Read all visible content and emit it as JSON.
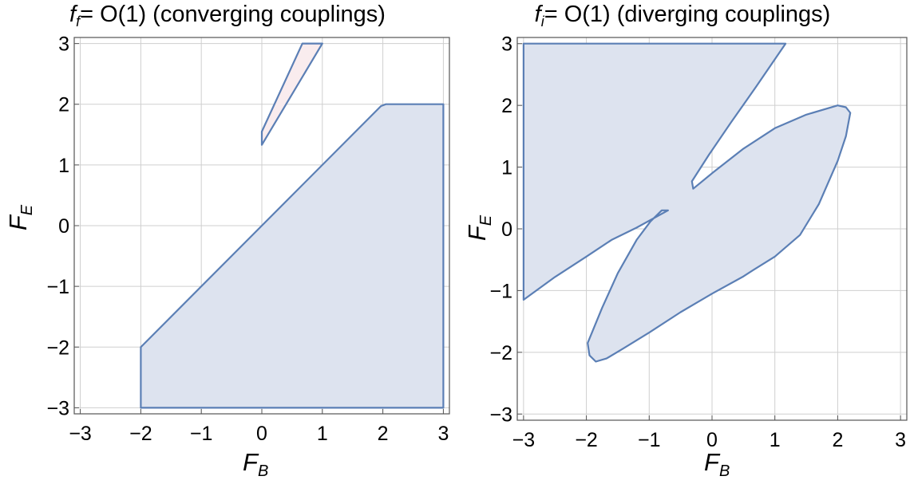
{
  "chart_data": [
    {
      "type": "region",
      "title": {
        "f_symbol": "f",
        "f_sub": "f",
        "rest": "= O(1) (converging couplings)"
      },
      "xlabel": {
        "main": "F",
        "sub": "B"
      },
      "ylabel": {
        "main": "F",
        "sub": "E"
      },
      "xlim": [
        -3.1,
        3.1
      ],
      "ylim": [
        -3.1,
        3.1
      ],
      "xticks": [
        -3,
        -2,
        -1,
        0,
        1,
        2,
        3
      ],
      "yticks": [
        -3,
        -2,
        -1,
        0,
        1,
        2,
        3
      ],
      "grid": true,
      "regions": [
        {
          "fill": "#dde3ef",
          "stroke": "#5b7fb5",
          "points": [
            [
              -2,
              -3
            ],
            [
              3,
              -3
            ],
            [
              3,
              2
            ],
            [
              2.05,
              2
            ],
            [
              1.97,
              1.97
            ],
            [
              0,
              0
            ],
            [
              -1.97,
              -1.97
            ],
            [
              -2,
              -2
            ]
          ]
        },
        {
          "fill": "#f9ecee",
          "stroke": "#5b7fb5",
          "points": [
            [
              0,
              1.33
            ],
            [
              1.0,
              3.0
            ],
            [
              0.67,
              3.0
            ],
            [
              0,
              1.55
            ]
          ]
        }
      ]
    },
    {
      "type": "region",
      "title": {
        "f_symbol": "f",
        "f_sub": "i",
        "rest": "= O(1) (diverging couplings)"
      },
      "xlabel": {
        "main": "F",
        "sub": "B"
      },
      "ylabel": {
        "main": "F",
        "sub": "E"
      },
      "xlim": [
        -3.1,
        3.1
      ],
      "ylim": [
        -3.1,
        3.1
      ],
      "xticks": [
        -3,
        -2,
        -1,
        0,
        1,
        2,
        3
      ],
      "yticks": [
        -3,
        -2,
        -1,
        0,
        1,
        2,
        3
      ],
      "grid": true,
      "regions": [
        {
          "fill": "#dde3ef",
          "stroke": "#5b7fb5",
          "points": [
            [
              -3,
              -1.15
            ],
            [
              -3,
              3
            ],
            [
              1.17,
              3
            ],
            [
              0.7,
              2.3
            ],
            [
              0.3,
              1.72
            ],
            [
              -0.05,
              1.2
            ],
            [
              -0.32,
              0.77
            ],
            [
              -0.3,
              0.65
            ],
            [
              0,
              0.9
            ],
            [
              0.5,
              1.3
            ],
            [
              1.0,
              1.63
            ],
            [
              1.5,
              1.85
            ],
            [
              2.0,
              2.0
            ],
            [
              2.13,
              1.97
            ],
            [
              2.2,
              1.88
            ],
            [
              2.13,
              1.5
            ],
            [
              2.0,
              1.1
            ],
            [
              1.7,
              0.4
            ],
            [
              1.4,
              -0.1
            ],
            [
              1.0,
              -0.45
            ],
            [
              0.65,
              -0.67
            ],
            [
              0.5,
              -0.77
            ],
            [
              0,
              -1.05
            ],
            [
              -0.5,
              -1.35
            ],
            [
              -1.0,
              -1.68
            ],
            [
              -1.4,
              -1.93
            ],
            [
              -1.68,
              -2.1
            ],
            [
              -1.85,
              -2.15
            ],
            [
              -1.95,
              -2.05
            ],
            [
              -1.98,
              -1.85
            ],
            [
              -1.75,
              -1.28
            ],
            [
              -1.5,
              -0.72
            ],
            [
              -1.2,
              -0.18
            ],
            [
              -0.98,
              0.12
            ],
            [
              -0.8,
              0.3
            ],
            [
              -0.7,
              0.3
            ],
            [
              -1.2,
              0.02
            ],
            [
              -1.6,
              -0.18
            ],
            [
              -2.0,
              -0.45
            ],
            [
              -2.5,
              -0.78
            ]
          ]
        }
      ]
    }
  ]
}
